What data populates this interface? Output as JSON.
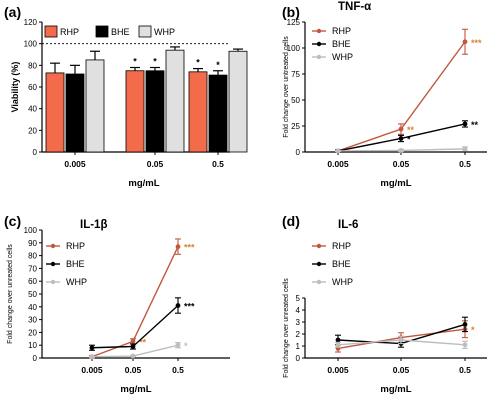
{
  "colors": {
    "RHP": "#f26b4a",
    "RHP_line": "#c0583c",
    "BHE": "#000000",
    "WHP": "#e0e0e0",
    "WHP_line": "#bdbdbd",
    "star_gold": "#d9822b"
  },
  "chart_data": [
    {
      "panel": "(a)",
      "type": "bar",
      "title": "",
      "categories": [
        "0.005",
        "0.05",
        "0.5"
      ],
      "xlabel": "mg/mL",
      "ylabel": "Viability (%)",
      "ylim": [
        0,
        120
      ],
      "yticks": [
        "0",
        "20",
        "40",
        "60",
        "80",
        "100",
        "120"
      ],
      "reference_line": 100,
      "legend": "top",
      "series": [
        {
          "name": "RHP",
          "values": [
            73,
            75,
            74
          ],
          "errors": [
            9,
            3,
            3
          ],
          "stars": [
            "",
            "*",
            "*"
          ]
        },
        {
          "name": "BHE",
          "values": [
            72,
            75,
            71
          ],
          "errors": [
            8,
            3,
            4
          ],
          "stars": [
            "",
            "*",
            "*"
          ]
        },
        {
          "name": "WHP",
          "values": [
            85,
            94,
            93
          ],
          "errors": [
            8,
            3,
            2
          ],
          "stars": [
            "",
            "",
            ""
          ]
        }
      ]
    },
    {
      "panel": "(b)",
      "type": "line",
      "title": "TNF-α",
      "x": [
        "0.005",
        "0.05",
        "0.5"
      ],
      "xlabel": "mg/mL",
      "ylabel": "Fold change over untreated cells",
      "ylim": [
        0,
        125
      ],
      "yticks": [
        "0",
        "25",
        "50",
        "75",
        "100",
        "125"
      ],
      "legend": "top-left",
      "series": [
        {
          "name": "RHP",
          "values": [
            1,
            22,
            106
          ],
          "errors": [
            1,
            5,
            12
          ],
          "stars": [
            "",
            "**",
            "***"
          ]
        },
        {
          "name": "BHE",
          "values": [
            1,
            13,
            27
          ],
          "errors": [
            1,
            3,
            3
          ],
          "stars": [
            "",
            "*",
            "**"
          ]
        },
        {
          "name": "WHP",
          "values": [
            1,
            1.5,
            3
          ],
          "errors": [
            0.5,
            1,
            2
          ],
          "stars": [
            "",
            "",
            ""
          ]
        }
      ]
    },
    {
      "panel": "(c)",
      "type": "line",
      "title": "IL-1β",
      "x": [
        "0.005",
        "0.05",
        "0.5"
      ],
      "xlabel": "mg/mL",
      "ylabel": "Fold change over unreated cells",
      "ylim": [
        0,
        100
      ],
      "yticks": [
        "0",
        "10",
        "20",
        "30",
        "40",
        "50",
        "60",
        "70",
        "80",
        "90",
        "100"
      ],
      "legend": "top-left",
      "series": [
        {
          "name": "RHP",
          "values": [
            1,
            13,
            87
          ],
          "errors": [
            1,
            2,
            6
          ],
          "stars": [
            "",
            "**",
            "***"
          ]
        },
        {
          "name": "BHE",
          "values": [
            8,
            9,
            41
          ],
          "errors": [
            2,
            2,
            6
          ],
          "stars": [
            "",
            "",
            "***"
          ]
        },
        {
          "name": "WHP",
          "values": [
            1,
            1.5,
            10
          ],
          "errors": [
            0.5,
            0.5,
            2
          ],
          "stars": [
            "",
            "",
            "*"
          ]
        }
      ]
    },
    {
      "panel": "(d)",
      "type": "line",
      "title": "IL-6",
      "x": [
        "0.005",
        "0.05",
        "0.5"
      ],
      "xlabel": "mg/mL",
      "ylabel": "Fold change over unreated cells",
      "ylim": [
        0,
        5
      ],
      "yticks": [
        "0",
        "1",
        "2",
        "3",
        "4",
        "5"
      ],
      "legend": "top-left",
      "series": [
        {
          "name": "RHP",
          "values": [
            0.8,
            1.7,
            2.4
          ],
          "errors": [
            0.3,
            0.4,
            0.7
          ],
          "stars": [
            "",
            "",
            "*"
          ]
        },
        {
          "name": "BHE",
          "values": [
            1.5,
            1.2,
            2.8
          ],
          "errors": [
            0.4,
            0.3,
            0.6
          ],
          "stars": [
            "",
            "",
            ""
          ]
        },
        {
          "name": "WHP",
          "values": [
            1.1,
            1.5,
            1.1
          ],
          "errors": [
            0.2,
            0.3,
            0.3
          ],
          "stars": [
            "",
            "",
            ""
          ]
        }
      ]
    }
  ]
}
